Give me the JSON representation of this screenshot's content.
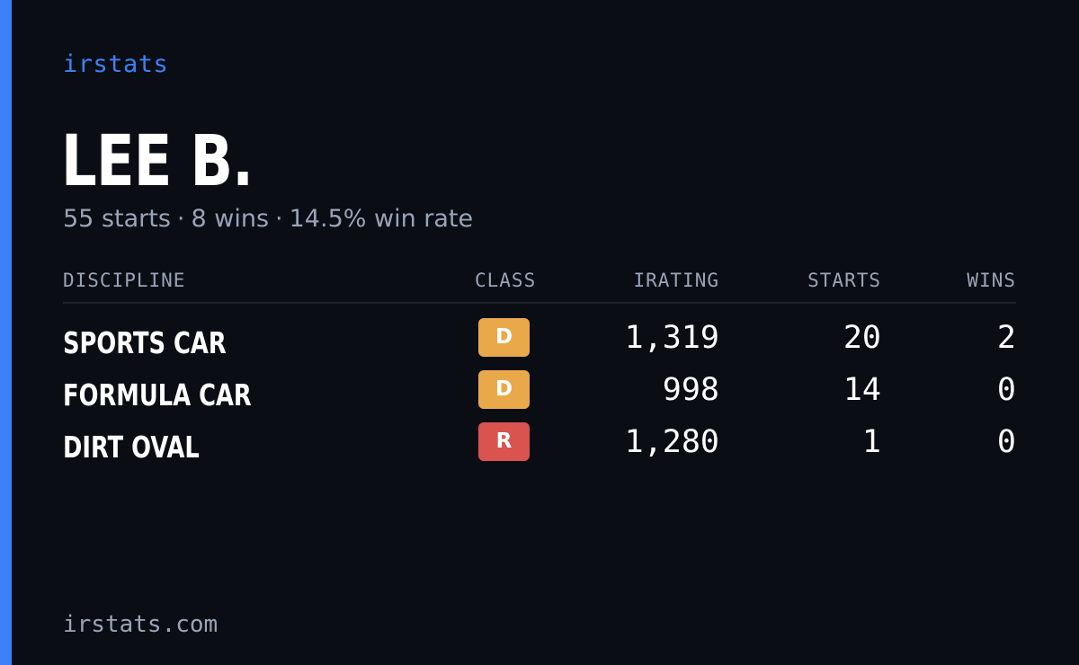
{
  "brand": "irstats",
  "driver": {
    "name": "LEE B.",
    "summary": {
      "starts": "55 starts",
      "wins": "8 wins",
      "win_rate": "14.5% win rate",
      "separator": "·"
    }
  },
  "table": {
    "headers": {
      "discipline": "DISCIPLINE",
      "class": "CLASS",
      "irating": "IRATING",
      "starts": "STARTS",
      "wins": "WINS"
    },
    "rows": [
      {
        "discipline": "SPORTS CAR",
        "class": "D",
        "class_color": "#e9a94b",
        "irating": "1,319",
        "starts": "20",
        "wins": "2"
      },
      {
        "discipline": "FORMULA CAR",
        "class": "D",
        "class_color": "#e9a94b",
        "irating": "998",
        "starts": "14",
        "wins": "0"
      },
      {
        "discipline": "DIRT OVAL",
        "class": "R",
        "class_color": "#d9534f",
        "irating": "1,280",
        "starts": "1",
        "wins": "0"
      }
    ]
  },
  "footer": "irstats.com",
  "colors": {
    "accent": "#3b82f6",
    "background": "#0a0d14",
    "muted_text": "#9aa4b8"
  }
}
